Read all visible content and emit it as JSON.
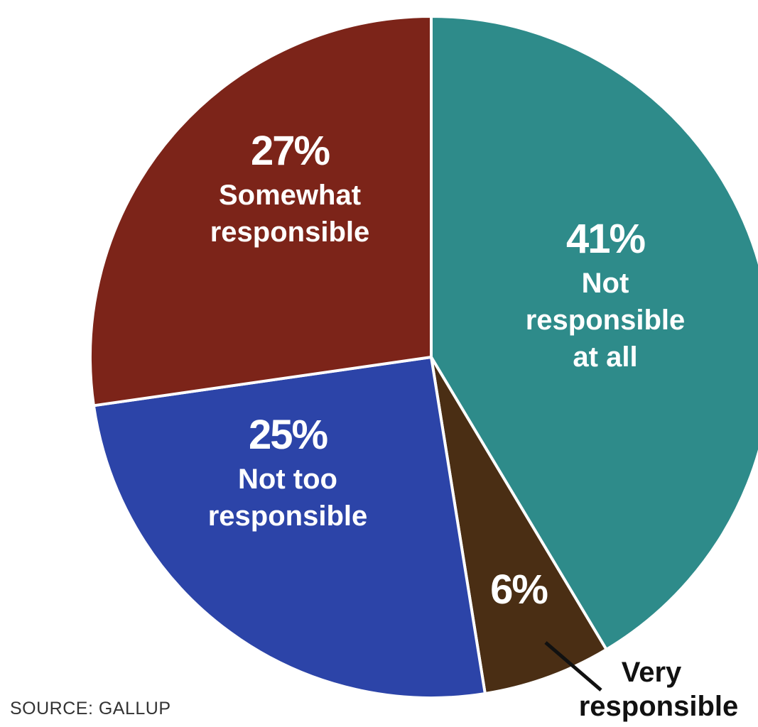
{
  "chart_data": {
    "type": "pie",
    "title": "",
    "slices": [
      {
        "label_lines": [
          "Not",
          "responsible",
          "at all"
        ],
        "value": 41,
        "display": "41%",
        "color": "#2e8b8a"
      },
      {
        "label_lines": [
          "Very",
          "responsible"
        ],
        "value": 6,
        "display": "6%",
        "color": "#4a2e14"
      },
      {
        "label_lines": [
          "Not too",
          "responsible"
        ],
        "value": 25,
        "display": "25%",
        "color": "#2c44a8"
      },
      {
        "label_lines": [
          "Somewhat",
          "responsible"
        ],
        "value": 27,
        "display": "27%",
        "color": "#7c2419"
      }
    ]
  },
  "source": "SOURCE: GALLUP"
}
